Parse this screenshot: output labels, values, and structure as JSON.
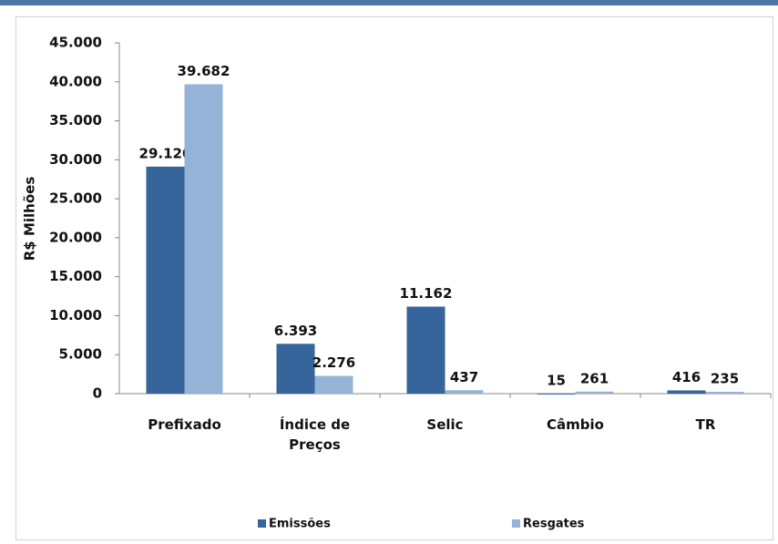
{
  "chart_data": {
    "type": "bar",
    "y_label": "R$ Milhões",
    "categories": [
      "Prefixado",
      "Índice de Preços",
      "Selic",
      "Câmbio",
      "TR"
    ],
    "series": [
      {
        "name": "Emissões",
        "color": "#35659a",
        "values": [
          29120,
          6393,
          11162,
          15,
          416
        ],
        "value_labels": [
          "29.120",
          "6.393",
          "11.162",
          "15",
          "416"
        ]
      },
      {
        "name": "Resgates",
        "color": "#95b3d7",
        "values": [
          39682,
          2276,
          437,
          261,
          235
        ],
        "value_labels": [
          "39.682",
          "2.276",
          "437",
          "261",
          "235"
        ]
      }
    ],
    "ylim": [
      0,
      45000
    ],
    "yticks": [
      0,
      {
        "value": 5000,
        "label": "5.000"
      },
      {
        "value": 10000,
        "label": "10.000"
      },
      {
        "value": 15000,
        "label": "15.000"
      },
      {
        "value": 20000,
        "label": "20.000"
      },
      {
        "value": 25000,
        "label": "25.000"
      },
      {
        "value": 30000,
        "label": "30.000"
      },
      {
        "value": 35000,
        "label": "35.000"
      },
      {
        "value": 40000,
        "label": "40.000"
      },
      {
        "value": 45000,
        "label": "45.000"
      }
    ],
    "legend": "bottom"
  }
}
